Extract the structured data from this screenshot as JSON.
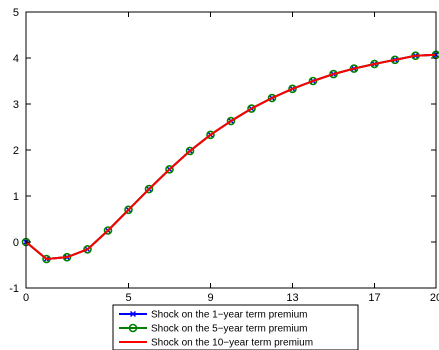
{
  "chart_data": {
    "type": "line",
    "title": "",
    "xlabel": "",
    "ylabel": "",
    "xlim": [
      0,
      20
    ],
    "ylim": [
      -1,
      5
    ],
    "xticks": [
      0,
      5,
      9,
      13,
      17,
      20
    ],
    "yticks": [
      -1,
      0,
      1,
      2,
      3,
      4,
      5
    ],
    "grid": false,
    "legend_position": "bottom-center",
    "x": [
      0,
      1,
      2,
      3,
      4,
      5,
      6,
      7,
      8,
      9,
      10,
      11,
      12,
      13,
      14,
      15,
      16,
      17,
      18,
      19,
      20
    ],
    "series": [
      {
        "name": "Shock on the 1−year term premium",
        "color": "#0000ff",
        "marker": "x",
        "values": [
          0.0,
          -0.37,
          -0.33,
          -0.16,
          0.25,
          0.7,
          1.15,
          1.58,
          1.98,
          2.33,
          2.63,
          2.9,
          3.13,
          3.33,
          3.5,
          3.65,
          3.77,
          3.87,
          3.96,
          4.05,
          4.07
        ]
      },
      {
        "name": "Shock on the 5−year term premium",
        "color": "#008000",
        "marker": "o",
        "values": [
          0.0,
          -0.37,
          -0.33,
          -0.16,
          0.25,
          0.7,
          1.15,
          1.58,
          1.98,
          2.33,
          2.63,
          2.9,
          3.13,
          3.33,
          3.5,
          3.65,
          3.77,
          3.87,
          3.96,
          4.05,
          4.07
        ]
      },
      {
        "name": "Shock on the 10−year term premium",
        "color": "#ff0000",
        "marker": "none",
        "values": [
          0.0,
          -0.37,
          -0.33,
          -0.16,
          0.25,
          0.7,
          1.15,
          1.58,
          1.98,
          2.33,
          2.63,
          2.9,
          3.13,
          3.33,
          3.5,
          3.65,
          3.77,
          3.87,
          3.96,
          4.05,
          4.07
        ]
      }
    ]
  }
}
